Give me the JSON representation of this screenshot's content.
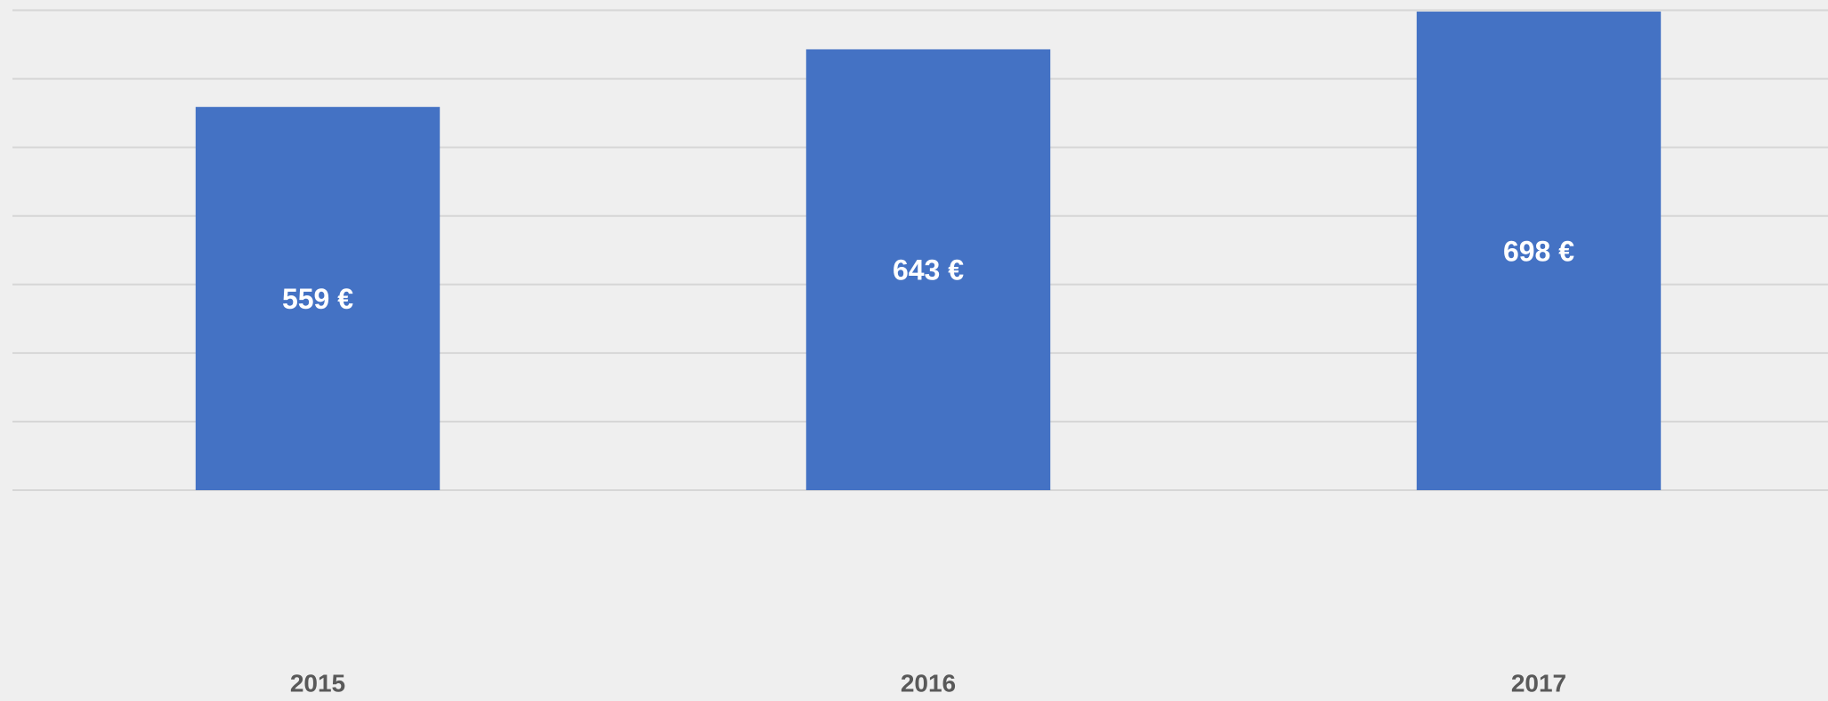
{
  "chart_data": {
    "type": "bar",
    "categories": [
      "2015",
      "2016",
      "2017"
    ],
    "values": [
      559,
      643,
      698
    ],
    "value_labels": [
      "559 €",
      "643 €",
      "698 €"
    ],
    "color": "#4472c4",
    "ylim": [
      0,
      700
    ],
    "yticks": [
      0,
      100,
      200,
      300,
      400,
      500,
      600,
      700
    ],
    "grid": true
  }
}
